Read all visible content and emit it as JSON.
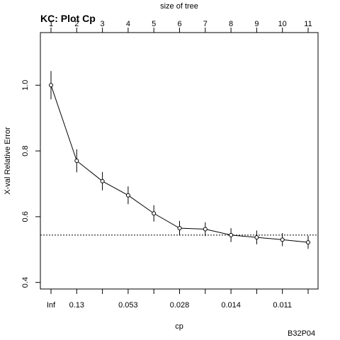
{
  "chart_data": {
    "type": "line",
    "title": "KC: Plot Cp",
    "xlabel": "cp",
    "ylabel": "X-val Relative Error",
    "top_axis_label": "size of tree",
    "footnote": "B32P04",
    "size_of_tree": [
      1,
      2,
      3,
      4,
      5,
      6,
      7,
      8,
      9,
      10,
      11
    ],
    "bottom_tick_labels": [
      "Inf",
      "0.13",
      "",
      "0.053",
      "",
      "0.028",
      "",
      "0.014",
      "",
      "0.011",
      ""
    ],
    "y_ticks": [
      0.4,
      0.6,
      0.8,
      1.0
    ],
    "y_tick_labels": [
      "0.4",
      "0.6",
      "0.8",
      "1.0"
    ],
    "ylim": [
      0.38,
      1.16
    ],
    "series": [
      {
        "values": [
          1.0,
          0.77,
          0.708,
          0.665,
          0.61,
          0.565,
          0.562,
          0.544,
          0.537,
          0.53,
          0.522
        ],
        "error": [
          0.043,
          0.035,
          0.028,
          0.027,
          0.025,
          0.022,
          0.021,
          0.021,
          0.021,
          0.02,
          0.02
        ]
      }
    ],
    "reference_line": 0.544,
    "reference_style": "dotted",
    "grid": false,
    "legend": "none"
  }
}
